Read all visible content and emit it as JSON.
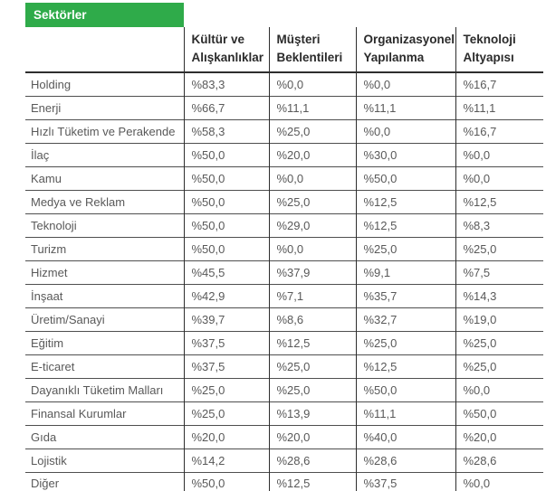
{
  "chart_data": {
    "type": "table",
    "corner_label": "Sektörler",
    "columns": [
      "Kültür ve Alışkanlıklar",
      "Müşteri Beklentileri",
      "Organizasyonel Yapılanma",
      "Teknoloji Altyapısı"
    ],
    "rows": [
      {
        "sector": "Holding",
        "values": [
          "%83,3",
          "%0,0",
          "%0,0",
          "%16,7"
        ]
      },
      {
        "sector": "Enerji",
        "values": [
          "%66,7",
          "%11,1",
          "%11,1",
          "%11,1"
        ]
      },
      {
        "sector": "Hızlı Tüketim ve Perakende",
        "values": [
          "%58,3",
          "%25,0",
          "%0,0",
          "%16,7"
        ]
      },
      {
        "sector": "İlaç",
        "values": [
          "%50,0",
          "%20,0",
          "%30,0",
          "%0,0"
        ]
      },
      {
        "sector": "Kamu",
        "values": [
          "%50,0",
          "%0,0",
          "%50,0",
          "%0,0"
        ]
      },
      {
        "sector": "Medya ve Reklam",
        "values": [
          "%50,0",
          "%25,0",
          "%12,5",
          "%12,5"
        ]
      },
      {
        "sector": "Teknoloji",
        "values": [
          "%50,0",
          "%29,0",
          "%12,5",
          "%8,3"
        ]
      },
      {
        "sector": "Turizm",
        "values": [
          "%50,0",
          "%0,0",
          "%25,0",
          "%25,0"
        ]
      },
      {
        "sector": "Hizmet",
        "values": [
          "%45,5",
          "%37,9",
          "%9,1",
          "%7,5"
        ]
      },
      {
        "sector": "İnşaat",
        "values": [
          "%42,9",
          "%7,1",
          "%35,7",
          "%14,3"
        ]
      },
      {
        "sector": "Üretim/Sanayi",
        "values": [
          "%39,7",
          "%8,6",
          "%32,7",
          "%19,0"
        ]
      },
      {
        "sector": "Eğitim",
        "values": [
          "%37,5",
          "%12,5",
          "%25,0",
          "%25,0"
        ]
      },
      {
        "sector": "E-ticaret",
        "values": [
          "%37,5",
          "%25,0",
          "%12,5",
          "%25,0"
        ]
      },
      {
        "sector": "Dayanıklı Tüketim Malları",
        "values": [
          "%25,0",
          "%25,0",
          "%50,0",
          "%0,0"
        ]
      },
      {
        "sector": "Finansal Kurumlar",
        "values": [
          "%25,0",
          "%13,9",
          "%11,1",
          "%50,0"
        ]
      },
      {
        "sector": "Gıda",
        "values": [
          "%20,0",
          "%20,0",
          "%40,0",
          "%20,0"
        ]
      },
      {
        "sector": "Lojistik",
        "values": [
          "%14,2",
          "%28,6",
          "%28,6",
          "%28,6"
        ]
      },
      {
        "sector": "Diğer",
        "values": [
          "%50,0",
          "%12,5",
          "%37,5",
          "%0,0"
        ]
      }
    ]
  },
  "colors": {
    "header_green": "#2fab4a",
    "header_text": "#2b2b2b",
    "body_text": "#595959",
    "grid_dark": "#2e2e2e",
    "row_line": "#4f4f4f",
    "bottom_line": "#1d1d1d"
  }
}
